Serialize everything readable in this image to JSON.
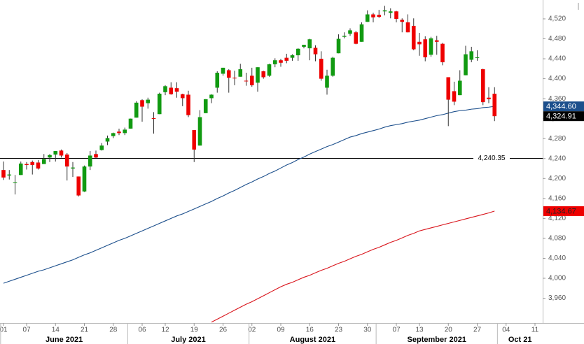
{
  "chart_data": {
    "type": "candlestick",
    "x": [
      "2021-06-01",
      "2021-06-02",
      "2021-06-03",
      "2021-06-04",
      "2021-06-07",
      "2021-06-08",
      "2021-06-09",
      "2021-06-10",
      "2021-06-11",
      "2021-06-14",
      "2021-06-15",
      "2021-06-16",
      "2021-06-17",
      "2021-06-18",
      "2021-06-21",
      "2021-06-22",
      "2021-06-23",
      "2021-06-24",
      "2021-06-25",
      "2021-06-28",
      "2021-06-29",
      "2021-06-30",
      "2021-07-01",
      "2021-07-02",
      "2021-07-06",
      "2021-07-07",
      "2021-07-08",
      "2021-07-09",
      "2021-07-12",
      "2021-07-13",
      "2021-07-14",
      "2021-07-15",
      "2021-07-16",
      "2021-07-19",
      "2021-07-20",
      "2021-07-21",
      "2021-07-22",
      "2021-07-23",
      "2021-07-26",
      "2021-07-27",
      "2021-07-28",
      "2021-07-29",
      "2021-07-30",
      "2021-08-02",
      "2021-08-03",
      "2021-08-04",
      "2021-08-05",
      "2021-08-06",
      "2021-08-09",
      "2021-08-10",
      "2021-08-11",
      "2021-08-12",
      "2021-08-13",
      "2021-08-16",
      "2021-08-17",
      "2021-08-18",
      "2021-08-19",
      "2021-08-20",
      "2021-08-23",
      "2021-08-24",
      "2021-08-25",
      "2021-08-26",
      "2021-08-27",
      "2021-08-30",
      "2021-08-31",
      "2021-09-01",
      "2021-09-02",
      "2021-09-03",
      "2021-09-07",
      "2021-09-08",
      "2021-09-09",
      "2021-09-10",
      "2021-09-13",
      "2021-09-14",
      "2021-09-15",
      "2021-09-16",
      "2021-09-17",
      "2021-09-20",
      "2021-09-21",
      "2021-09-22",
      "2021-09-23",
      "2021-09-24",
      "2021-09-27",
      "2021-09-28",
      "2021-09-29",
      "2021-09-30"
    ],
    "open": [
      4217,
      4206,
      4191,
      4207,
      4229,
      4233,
      4232,
      4229,
      4242,
      4248,
      4256,
      4248,
      4220,
      4204,
      4174,
      4224,
      4249,
      4257,
      4274,
      4285,
      4294,
      4291,
      4300,
      4322,
      4357,
      4351,
      4321,
      4329,
      4373,
      4382,
      4381,
      4369,
      4368,
      4297,
      4266,
      4331,
      4361,
      4382,
      4410,
      4417,
      4402,
      4404,
      4396,
      4406,
      4392,
      4415,
      4406,
      4429,
      4437,
      4442,
      4442,
      4447,
      4464,
      4461,
      4462,
      4440,
      4382,
      4406,
      4451,
      4484,
      4490,
      4493,
      4474,
      4514,
      4529,
      4528,
      4535,
      4532,
      4535,
      4518,
      4513,
      4506,
      4474,
      4479,
      4448,
      4477,
      4470,
      4403,
      4375,
      4367,
      4407,
      4438,
      4443,
      4419,
      4362,
      4370
    ],
    "high": [
      4234,
      4217,
      4207,
      4234,
      4233,
      4236,
      4237,
      4249,
      4249,
      4255,
      4258,
      4251,
      4233,
      4204,
      4226,
      4255,
      4256,
      4271,
      4286,
      4292,
      4300,
      4302,
      4320,
      4355,
      4359,
      4362,
      4333,
      4372,
      4387,
      4393,
      4393,
      4370,
      4376,
      4297,
      4337,
      4359,
      4369,
      4415,
      4422,
      4419,
      4416,
      4430,
      4412,
      4422,
      4423,
      4416,
      4430,
      4441,
      4440,
      4450,
      4449,
      4461,
      4468,
      4480,
      4467,
      4455,
      4418,
      4444,
      4489,
      4493,
      4501,
      4496,
      4513,
      4537,
      4532,
      4538,
      4546,
      4541,
      4536,
      4521,
      4529,
      4521,
      4492,
      4485,
      4484,
      4486,
      4472,
      4403,
      4394,
      4417,
      4466,
      4464,
      4457,
      4420,
      4383,
      4383
    ],
    "low": [
      4197,
      4198,
      4168,
      4207,
      4218,
      4208,
      4218,
      4229,
      4233,
      4234,
      4242,
      4196,
      4203,
      4164,
      4173,
      4217,
      4241,
      4256,
      4267,
      4281,
      4287,
      4287,
      4300,
      4322,
      4314,
      4340,
      4290,
      4329,
      4367,
      4368,
      4362,
      4345,
      4323,
      4233,
      4266,
      4331,
      4351,
      4372,
      4406,
      4372,
      4387,
      4404,
      4386,
      4384,
      4374,
      4400,
      4404,
      4423,
      4424,
      4431,
      4436,
      4436,
      4461,
      4437,
      4435,
      4396,
      4368,
      4404,
      4451,
      4481,
      4486,
      4469,
      4474,
      4514,
      4513,
      4522,
      4527,
      4521,
      4513,
      4493,
      4493,
      4457,
      4446,
      4435,
      4444,
      4448,
      4427,
      4305,
      4347,
      4367,
      4407,
      4433,
      4436,
      4347,
      4351,
      4315
    ],
    "close": [
      4202,
      4208,
      4192,
      4230,
      4227,
      4227,
      4220,
      4239,
      4247,
      4255,
      4246,
      4224,
      4222,
      4166,
      4224,
      4246,
      4242,
      4266,
      4281,
      4291,
      4291,
      4298,
      4320,
      4352,
      4344,
      4358,
      4320,
      4370,
      4385,
      4369,
      4374,
      4361,
      4327,
      4258,
      4323,
      4359,
      4368,
      4412,
      4422,
      4402,
      4401,
      4419,
      4395,
      4387,
      4423,
      4403,
      4429,
      4437,
      4432,
      4436,
      4447,
      4460,
      4468,
      4479,
      4449,
      4400,
      4406,
      4442,
      4480,
      4486,
      4497,
      4470,
      4509,
      4529,
      4523,
      4524,
      4537,
      4535,
      4520,
      4514,
      4493,
      4459,
      4469,
      4443,
      4481,
      4474,
      4433,
      4358,
      4354,
      4396,
      4449,
      4455,
      4443,
      4353,
      4359,
      4324.91
    ],
    "up_color": "#119a11",
    "down_color": "#ee0000",
    "lines": [
      {
        "color": "#1c4f8c",
        "values": [
          3990,
          3994,
          3998,
          4002,
          4006,
          4010,
          4014,
          4017,
          4021,
          4025,
          4029,
          4033,
          4037,
          4042,
          4047,
          4051,
          4056,
          4061,
          4066,
          4071,
          4076,
          4080,
          4085,
          4090,
          4095,
          4100,
          4105,
          4110,
          4115,
          4120,
          4125,
          4129,
          4134,
          4139,
          4144,
          4149,
          4154,
          4160,
          4165,
          4171,
          4176,
          4182,
          4188,
          4193,
          4199,
          4204,
          4210,
          4215,
          4221,
          4227,
          4232,
          4238,
          4243,
          4249,
          4254,
          4259,
          4264,
          4268,
          4273,
          4278,
          4283,
          4286,
          4290,
          4293,
          4296,
          4299,
          4303,
          4306,
          4308,
          4310,
          4313,
          4315,
          4317,
          4320,
          4323,
          4326,
          4328,
          4331,
          4334,
          4336,
          4337,
          4339,
          4340,
          4342,
          4343,
          4344.6
        ]
      },
      {
        "color": "#d9141b",
        "values": [
          null,
          null,
          null,
          null,
          null,
          null,
          null,
          null,
          null,
          null,
          null,
          null,
          null,
          null,
          null,
          null,
          null,
          null,
          null,
          null,
          null,
          null,
          null,
          null,
          null,
          null,
          null,
          null,
          null,
          null,
          null,
          null,
          null,
          null,
          null,
          null,
          3912,
          3918,
          3924,
          3930,
          3936,
          3942,
          3948,
          3953,
          3959,
          3965,
          3971,
          3977,
          3983,
          3988,
          3992,
          3997,
          4002,
          4006,
          4011,
          4016,
          4020,
          4025,
          4030,
          4034,
          4039,
          4044,
          4048,
          4053,
          4058,
          4062,
          4067,
          4072,
          4076,
          4081,
          4086,
          4090,
          4095,
          4098,
          4101,
          4104,
          4107,
          4110,
          4113,
          4116,
          4119,
          4122,
          4125,
          4128,
          4131,
          4134.67
        ]
      }
    ],
    "ylim": [
      3910.3,
      4557.8
    ],
    "yticks": [
      {
        "value": 3960,
        "label": "3,960"
      },
      {
        "value": 4000,
        "label": "4,000"
      },
      {
        "value": 4040,
        "label": "4,040"
      },
      {
        "value": 4080,
        "label": "4,080"
      },
      {
        "value": 4120,
        "label": "4,120"
      },
      {
        "value": 4160,
        "label": "4,160"
      },
      {
        "value": 4200,
        "label": "4,200"
      },
      {
        "value": 4240,
        "label": "4,240"
      },
      {
        "value": 4280,
        "label": "4,280"
      },
      {
        "value": 4320,
        "label": "4,320"
      },
      {
        "value": 4360,
        "label": "4,360"
      },
      {
        "value": 4400,
        "label": "4,400"
      },
      {
        "value": 4440,
        "label": "4,440"
      },
      {
        "value": 4480,
        "label": "4,480"
      },
      {
        "value": 4520,
        "label": "4,520"
      }
    ],
    "xticks": [
      {
        "value": "2021-06-01",
        "label": "01"
      },
      {
        "value": "2021-06-07",
        "label": "07"
      },
      {
        "value": "2021-06-14",
        "label": "14"
      },
      {
        "value": "2021-06-21",
        "label": "21"
      },
      {
        "value": "2021-06-28",
        "label": "28"
      },
      {
        "value": "2021-07-06",
        "label": "06"
      },
      {
        "value": "2021-07-12",
        "label": "12"
      },
      {
        "value": "2021-07-19",
        "label": "19"
      },
      {
        "value": "2021-07-26",
        "label": "26"
      },
      {
        "value": "2021-08-02",
        "label": "02"
      },
      {
        "value": "2021-08-09",
        "label": "09"
      },
      {
        "value": "2021-08-16",
        "label": "16"
      },
      {
        "value": "2021-08-23",
        "label": "23"
      },
      {
        "value": "2021-08-30",
        "label": "30"
      },
      {
        "value": "2021-09-07",
        "label": "07"
      },
      {
        "value": "2021-09-13",
        "label": "13"
      },
      {
        "value": "2021-09-20",
        "label": "20"
      },
      {
        "value": "2021-09-27",
        "label": "27"
      },
      {
        "value": "2021-10-04",
        "label": "04"
      },
      {
        "value": "2021-10-11",
        "label": "11"
      }
    ],
    "months": [
      {
        "month": "2021-06",
        "label": "June 2021"
      },
      {
        "month": "2021-07",
        "label": "July 2021"
      },
      {
        "month": "2021-08",
        "label": "August 2021"
      },
      {
        "month": "2021-09",
        "label": "September 2021"
      },
      {
        "month": "2021-10",
        "label": "Oct 21"
      }
    ],
    "hline": {
      "value": 4240.35,
      "label": "4,240.35"
    },
    "price_tags": [
      {
        "value": 4344.6,
        "label": "4,344.60",
        "color": "#1c4f8c",
        "text_color": "#ffffff"
      },
      {
        "value": 4324.91,
        "label": "4,324.91",
        "color": "#000000",
        "text_color": "#ffffff"
      },
      {
        "value": 4134.67,
        "label": "4,134.67",
        "color": "#ee0000",
        "text_color": "#222222"
      }
    ]
  }
}
